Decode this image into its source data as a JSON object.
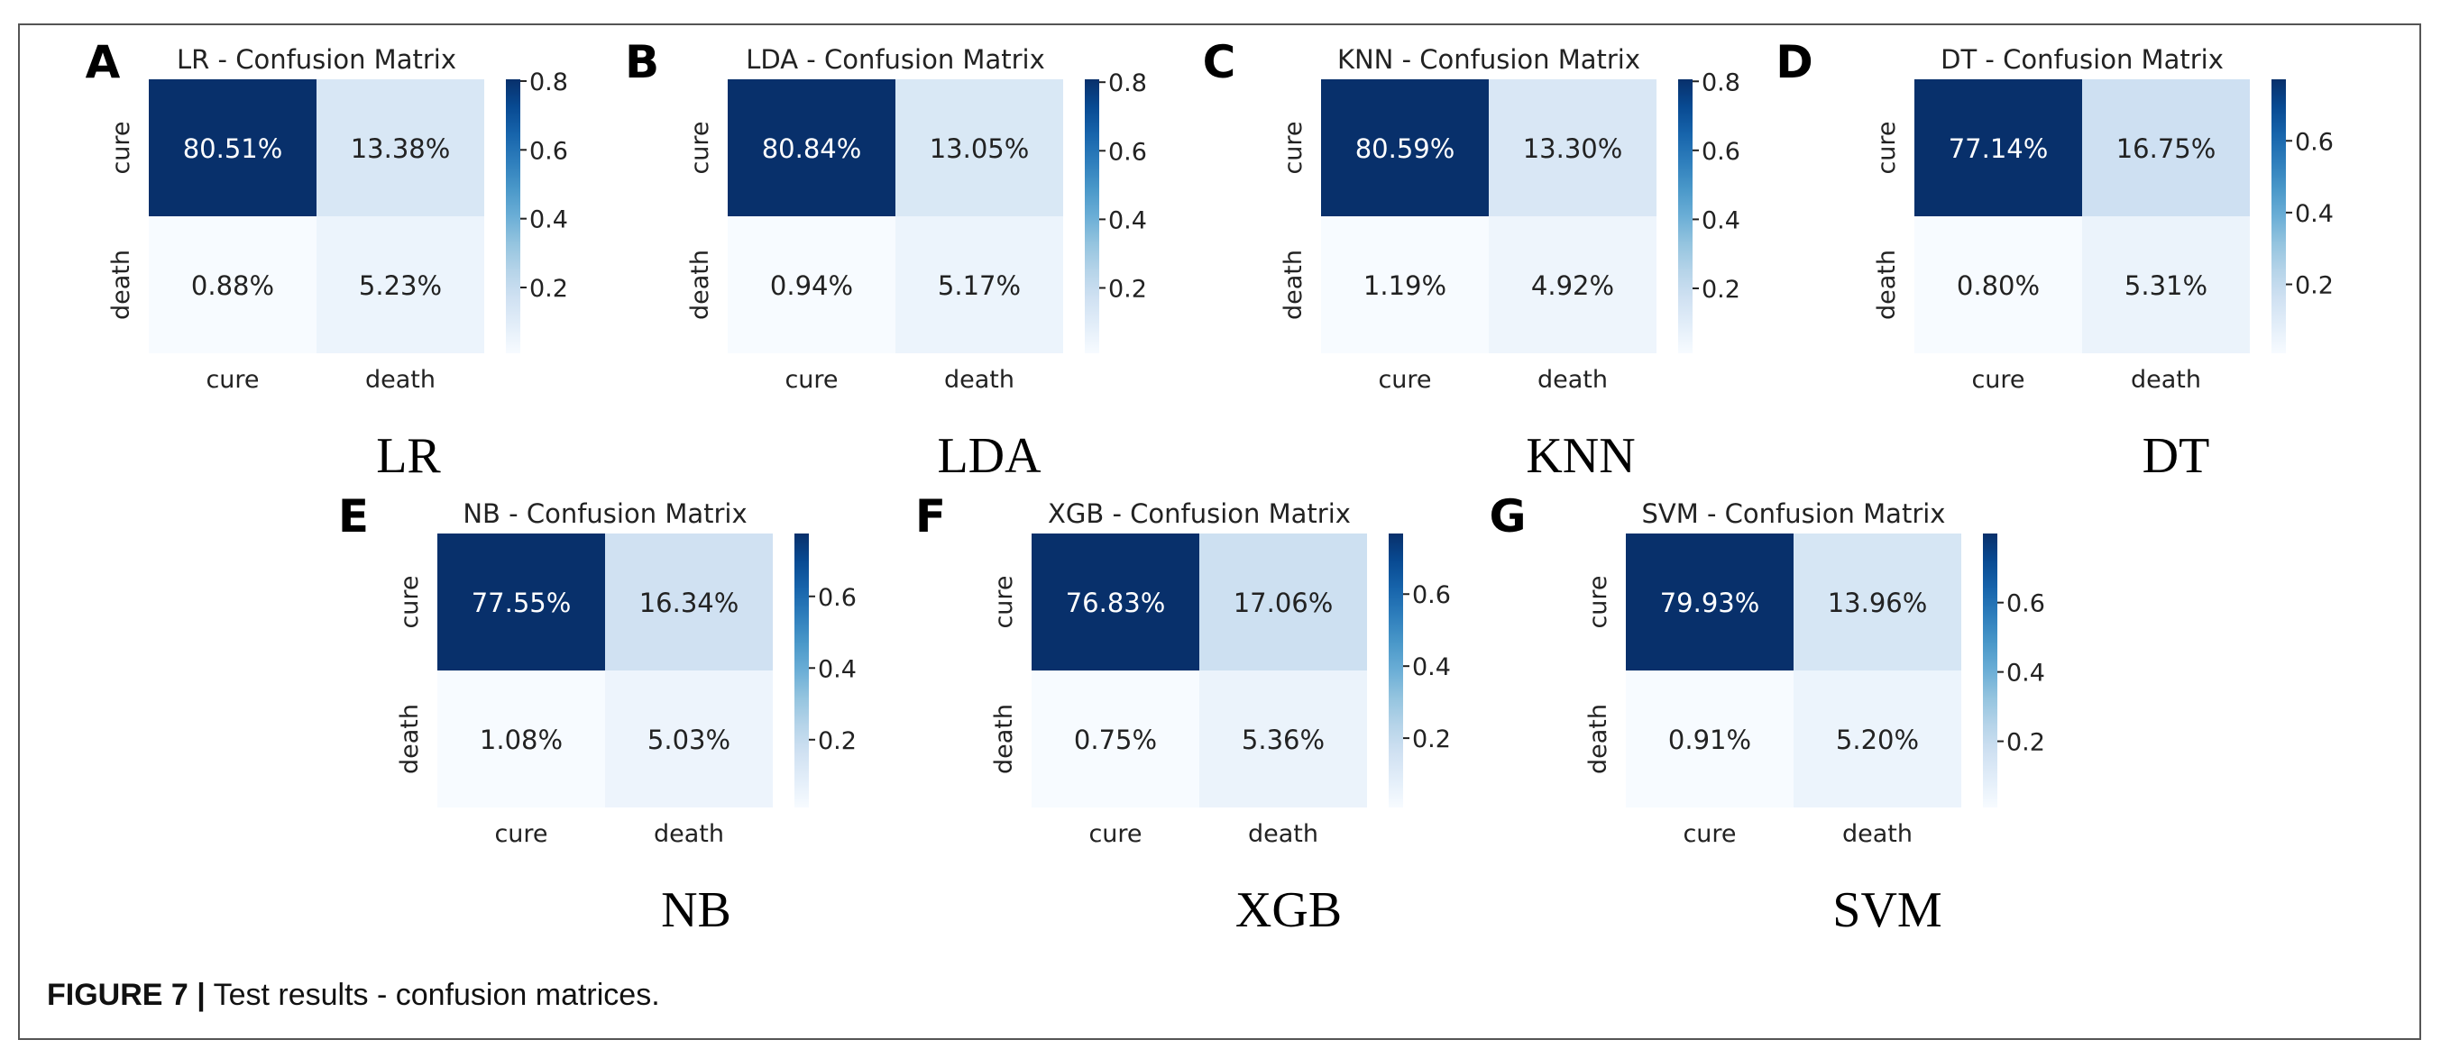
{
  "figure": {
    "caption_label": "FIGURE 7 |",
    "caption_text": " Test results - confusion matrices."
  },
  "colors": {
    "colormap": [
      "#f7fbff",
      "#deebf7",
      "#c6dbef",
      "#9ecae1",
      "#6baed6",
      "#4292c6",
      "#2171b5",
      "#08519c",
      "#08306b"
    ]
  },
  "chart_data": [
    {
      "type": "heatmap",
      "panel_letter": "A",
      "title": "LR - Confusion Matrix",
      "model_label": "LR",
      "row_labels": [
        "cure",
        "death"
      ],
      "col_labels": [
        "cure",
        "death"
      ],
      "values": [
        [
          0.8051,
          0.1338
        ],
        [
          0.0088,
          0.0523
        ]
      ],
      "cell_labels": [
        [
          "80.51%",
          "13.38%"
        ],
        [
          "0.88%",
          "5.23%"
        ]
      ],
      "colorbar": {
        "ticks": [
          0.2,
          0.4,
          0.6,
          0.8
        ],
        "tick_labels": [
          "0.2",
          "0.4",
          "0.6",
          "0.8"
        ],
        "range": [
          0.0088,
          0.8051
        ]
      }
    },
    {
      "type": "heatmap",
      "panel_letter": "B",
      "title": "LDA - Confusion Matrix",
      "model_label": "LDA",
      "row_labels": [
        "cure",
        "death"
      ],
      "col_labels": [
        "cure",
        "death"
      ],
      "values": [
        [
          0.8084,
          0.1305
        ],
        [
          0.0094,
          0.0517
        ]
      ],
      "cell_labels": [
        [
          "80.84%",
          "13.05%"
        ],
        [
          "0.94%",
          "5.17%"
        ]
      ],
      "colorbar": {
        "ticks": [
          0.2,
          0.4,
          0.6,
          0.8
        ],
        "tick_labels": [
          "0.2",
          "0.4",
          "0.6",
          "0.8"
        ],
        "range": [
          0.0094,
          0.8084
        ]
      }
    },
    {
      "type": "heatmap",
      "panel_letter": "C",
      "title": "KNN - Confusion Matrix",
      "model_label": "KNN",
      "row_labels": [
        "cure",
        "death"
      ],
      "col_labels": [
        "cure",
        "death"
      ],
      "values": [
        [
          0.8059,
          0.133
        ],
        [
          0.0119,
          0.0492
        ]
      ],
      "cell_labels": [
        [
          "80.59%",
          "13.30%"
        ],
        [
          "1.19%",
          "4.92%"
        ]
      ],
      "colorbar": {
        "ticks": [
          0.2,
          0.4,
          0.6,
          0.8
        ],
        "tick_labels": [
          "0.2",
          "0.4",
          "0.6",
          "0.8"
        ],
        "range": [
          0.0119,
          0.8059
        ]
      }
    },
    {
      "type": "heatmap",
      "panel_letter": "D",
      "title": "DT - Confusion Matrix",
      "model_label": "DT",
      "row_labels": [
        "cure",
        "death"
      ],
      "col_labels": [
        "cure",
        "death"
      ],
      "values": [
        [
          0.7714,
          0.1675
        ],
        [
          0.008,
          0.0531
        ]
      ],
      "cell_labels": [
        [
          "77.14%",
          "16.75%"
        ],
        [
          "0.80%",
          "5.31%"
        ]
      ],
      "colorbar": {
        "ticks": [
          0.2,
          0.4,
          0.6
        ],
        "tick_labels": [
          "0.2",
          "0.4",
          "0.6"
        ],
        "range": [
          0.008,
          0.7714
        ]
      }
    },
    {
      "type": "heatmap",
      "panel_letter": "E",
      "title": "NB - Confusion Matrix",
      "model_label": "NB",
      "row_labels": [
        "cure",
        "death"
      ],
      "col_labels": [
        "cure",
        "death"
      ],
      "values": [
        [
          0.7755,
          0.1634
        ],
        [
          0.0108,
          0.0503
        ]
      ],
      "cell_labels": [
        [
          "77.55%",
          "16.34%"
        ],
        [
          "1.08%",
          "5.03%"
        ]
      ],
      "colorbar": {
        "ticks": [
          0.2,
          0.4,
          0.6
        ],
        "tick_labels": [
          "0.2",
          "0.4",
          "0.6"
        ],
        "range": [
          0.0108,
          0.7755
        ]
      }
    },
    {
      "type": "heatmap",
      "panel_letter": "F",
      "title": "XGB - Confusion Matrix",
      "model_label": "XGB",
      "row_labels": [
        "cure",
        "death"
      ],
      "col_labels": [
        "cure",
        "death"
      ],
      "values": [
        [
          0.7683,
          0.1706
        ],
        [
          0.0075,
          0.0536
        ]
      ],
      "cell_labels": [
        [
          "76.83%",
          "17.06%"
        ],
        [
          "0.75%",
          "5.36%"
        ]
      ],
      "colorbar": {
        "ticks": [
          0.2,
          0.4,
          0.6
        ],
        "tick_labels": [
          "0.2",
          "0.4",
          "0.6"
        ],
        "range": [
          0.0075,
          0.7683
        ]
      }
    },
    {
      "type": "heatmap",
      "panel_letter": "G",
      "title": "SVM - Confusion Matrix",
      "model_label": "SVM",
      "row_labels": [
        "cure",
        "death"
      ],
      "col_labels": [
        "cure",
        "death"
      ],
      "values": [
        [
          0.7993,
          0.1396
        ],
        [
          0.0091,
          0.052
        ]
      ],
      "cell_labels": [
        [
          "79.93%",
          "13.96%"
        ],
        [
          "0.91%",
          "5.20%"
        ]
      ],
      "colorbar": {
        "ticks": [
          0.2,
          0.4,
          0.6
        ],
        "tick_labels": [
          "0.2",
          "0.4",
          "0.6"
        ],
        "range": [
          0.0091,
          0.7993
        ]
      }
    }
  ]
}
